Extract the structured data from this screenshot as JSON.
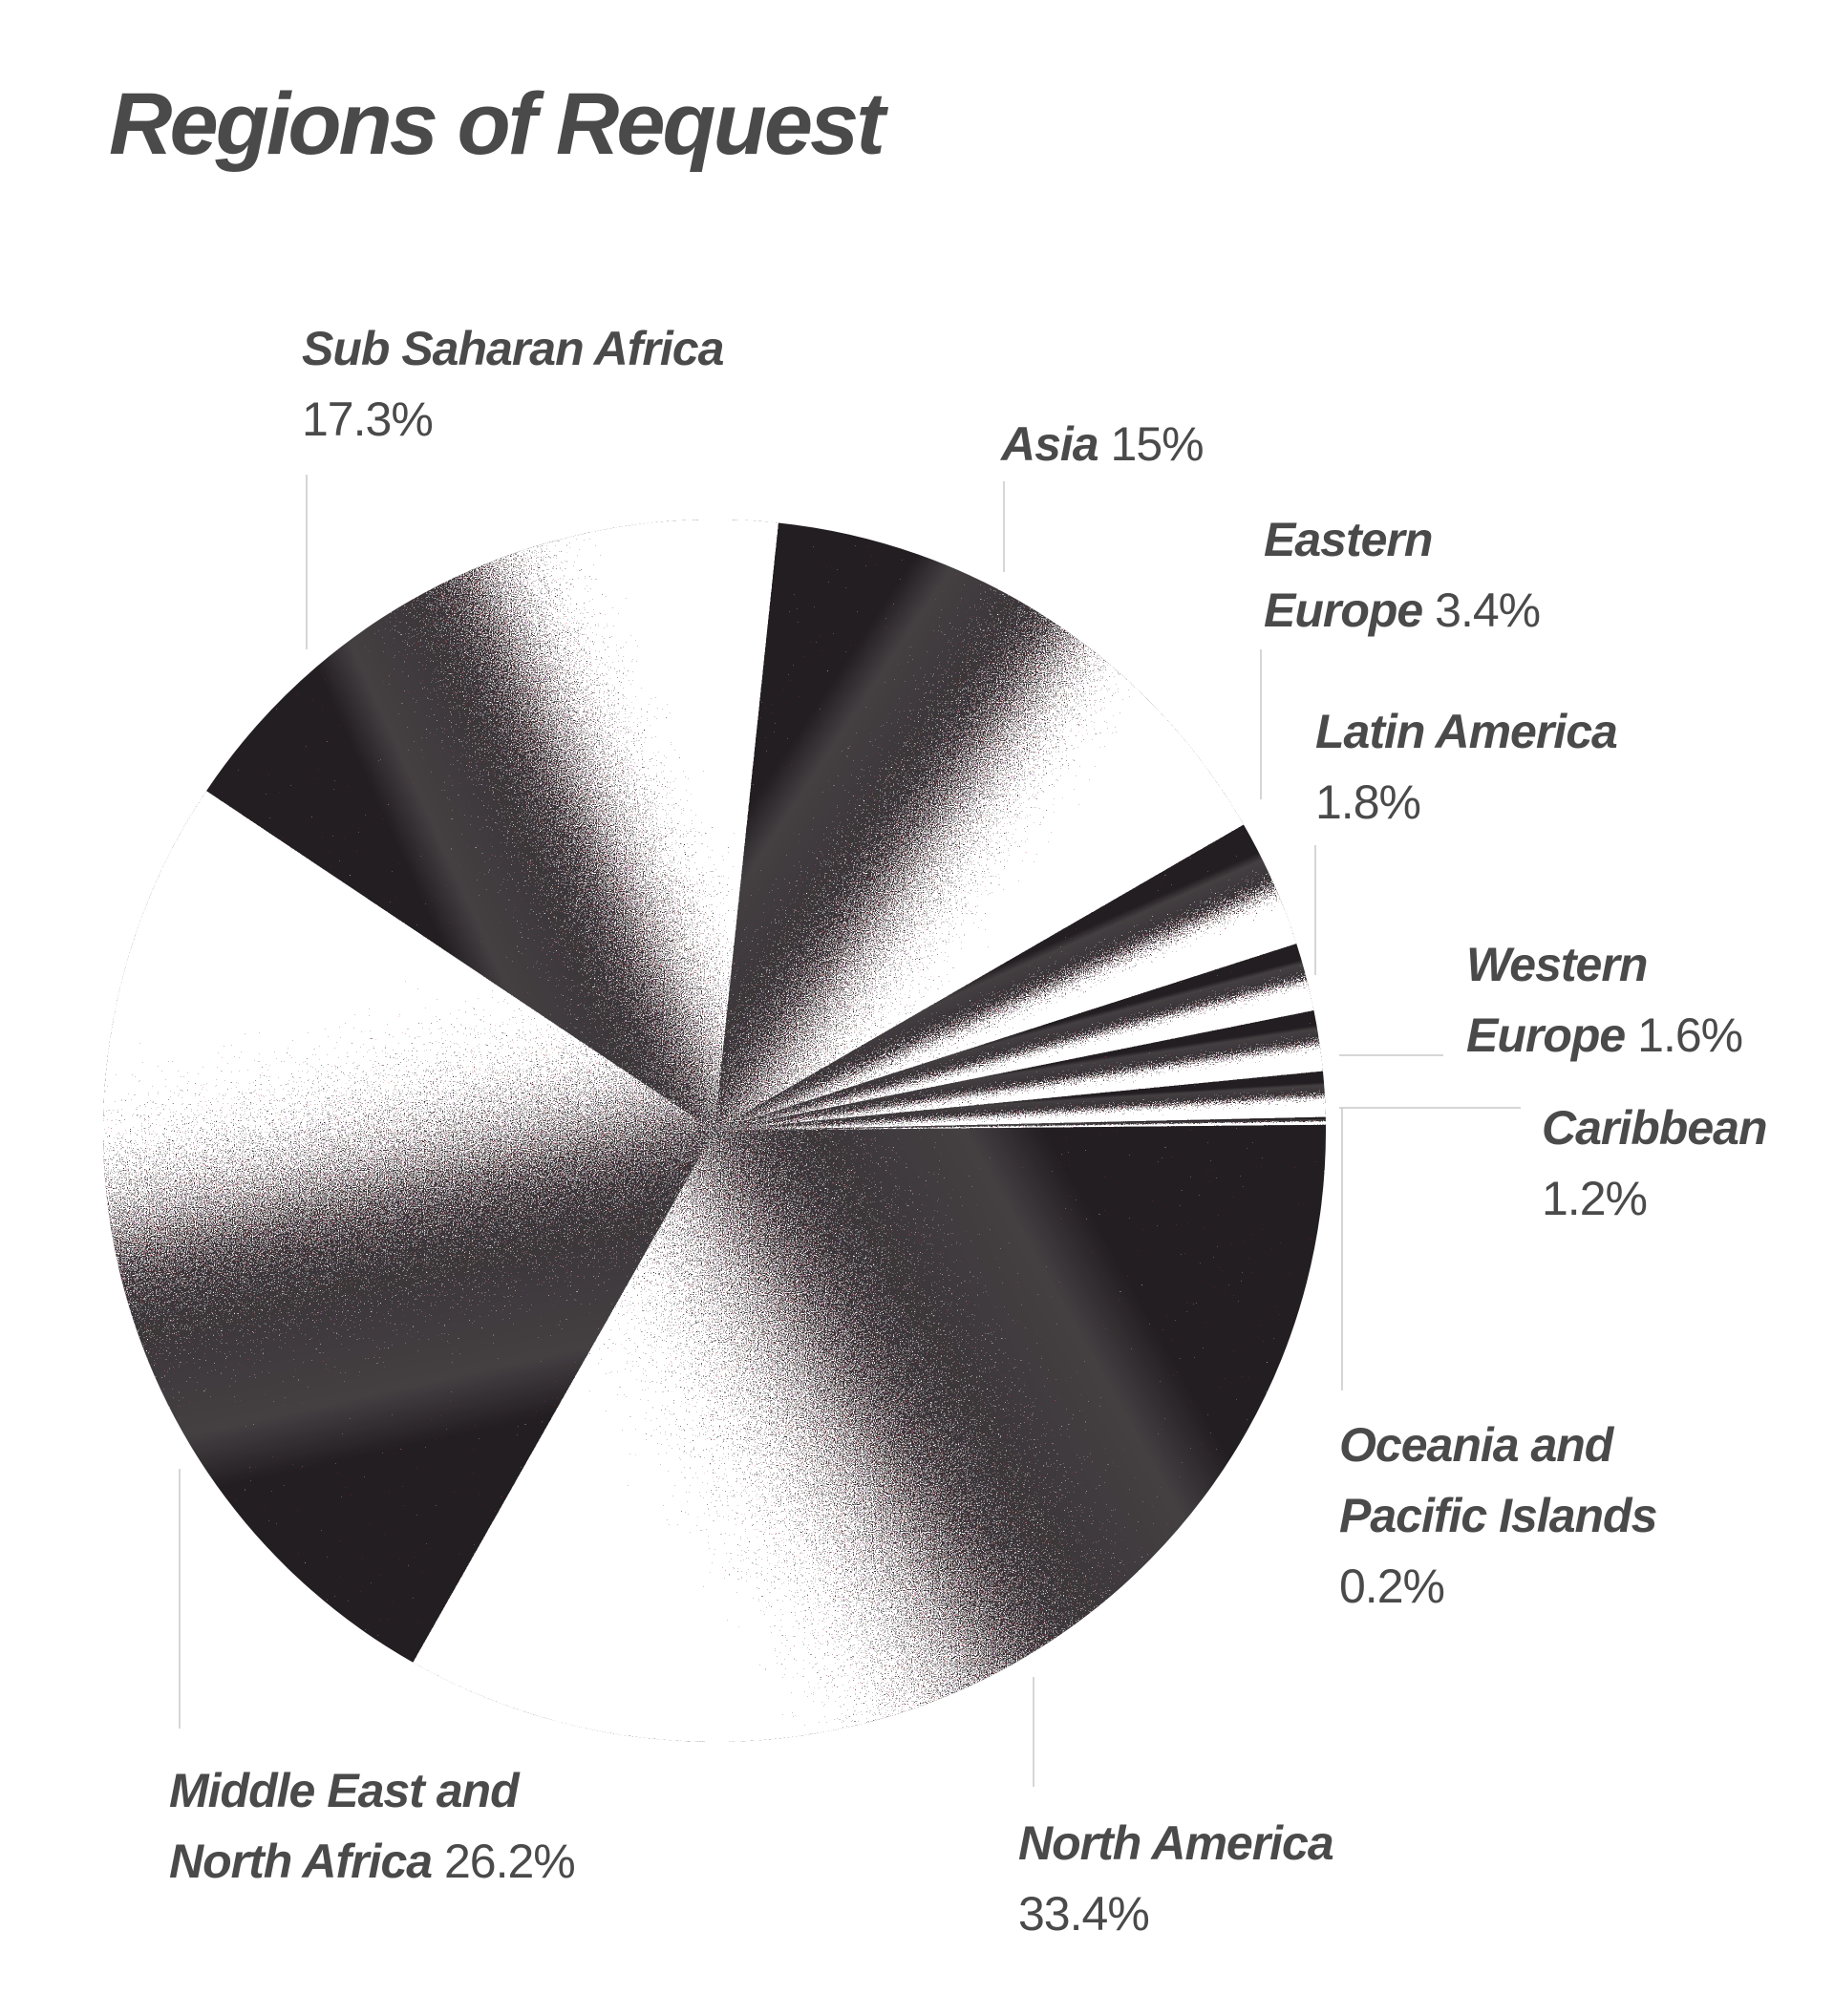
{
  "chart_data": {
    "type": "pie",
    "title": "Regions of Request",
    "categories": [
      "Asia",
      "Eastern Europe",
      "Latin America",
      "Western Europe",
      "Caribbean",
      "Oceania and Pacific Islands",
      "North America",
      "Middle East and North Africa",
      "Sub Saharan Africa"
    ],
    "values": [
      15,
      3.4,
      1.8,
      1.6,
      1.2,
      0.2,
      33.4,
      26.2,
      17.3
    ],
    "value_labels": [
      "15%",
      "3.4%",
      "1.8%",
      "1.6%",
      "1.2%",
      "0.2%",
      "33.4%",
      "26.2%",
      "17.3%"
    ],
    "color": "#231f20"
  }
}
